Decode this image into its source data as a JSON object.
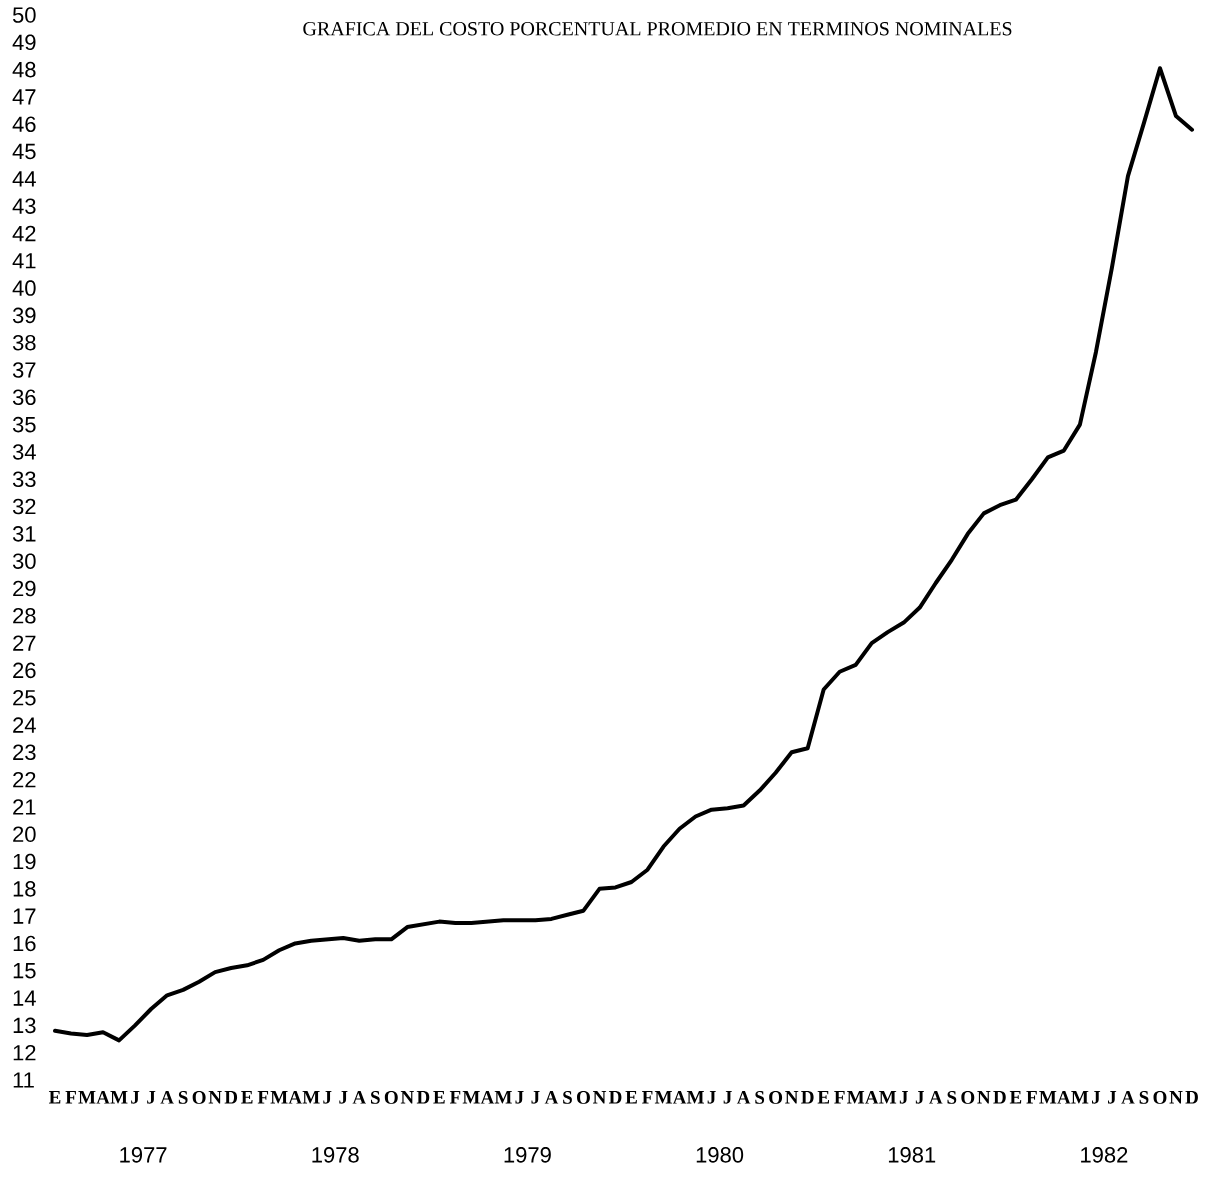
{
  "chart_data": {
    "type": "line",
    "title": "GRAFICA DEL COSTO PORCENTUAL PROMEDIO EN TERMINOS NOMINALES",
    "categories": [
      "E",
      "F",
      "M",
      "A",
      "M",
      "J",
      "J",
      "A",
      "S",
      "O",
      "N",
      "D",
      "E",
      "F",
      "M",
      "A",
      "M",
      "J",
      "J",
      "A",
      "S",
      "O",
      "N",
      "D",
      "E",
      "F",
      "M",
      "A",
      "M",
      "J",
      "J",
      "A",
      "S",
      "O",
      "N",
      "D",
      "E",
      "F",
      "M",
      "A",
      "M",
      "J",
      "J",
      "A",
      "S",
      "O",
      "N",
      "D",
      "E",
      "F",
      "M",
      "A",
      "M",
      "J",
      "J",
      "A",
      "S",
      "O",
      "N",
      "D",
      "E",
      "F",
      "M",
      "A",
      "M",
      "J",
      "J",
      "A",
      "S",
      "O",
      "N",
      "D"
    ],
    "values": [
      12.8,
      12.7,
      12.65,
      12.75,
      12.45,
      13.0,
      13.6,
      14.1,
      14.3,
      14.6,
      14.95,
      15.1,
      15.2,
      15.4,
      15.75,
      16.0,
      16.1,
      16.15,
      16.2,
      16.1,
      16.15,
      16.15,
      16.6,
      16.7,
      16.8,
      16.75,
      16.75,
      16.8,
      16.85,
      16.85,
      16.85,
      16.9,
      17.05,
      17.2,
      18.0,
      18.05,
      18.25,
      18.7,
      19.55,
      20.2,
      20.65,
      20.9,
      20.95,
      21.05,
      21.6,
      22.25,
      23.0,
      23.15,
      25.3,
      25.95,
      26.2,
      27.0,
      27.4,
      27.75,
      28.3,
      29.2,
      30.05,
      31.0,
      31.75,
      32.05,
      32.25,
      33.0,
      33.8,
      34.05,
      35.0,
      37.65,
      40.75,
      44.1,
      46.05,
      48.05,
      46.3,
      45.8
    ],
    "color": "#000000",
    "ylim": [
      11,
      50
    ],
    "yticks": [
      11,
      12,
      13,
      14,
      15,
      16,
      17,
      18,
      19,
      20,
      21,
      22,
      23,
      24,
      25,
      26,
      27,
      28,
      29,
      30,
      31,
      32,
      33,
      34,
      35,
      36,
      37,
      38,
      39,
      40,
      41,
      42,
      43,
      44,
      45,
      46,
      47,
      48,
      49,
      50
    ],
    "annotations": [
      "1977",
      "1978",
      "1979",
      "1980",
      "1981",
      "1982"
    ],
    "marker": "none",
    "line_style": "solid"
  }
}
